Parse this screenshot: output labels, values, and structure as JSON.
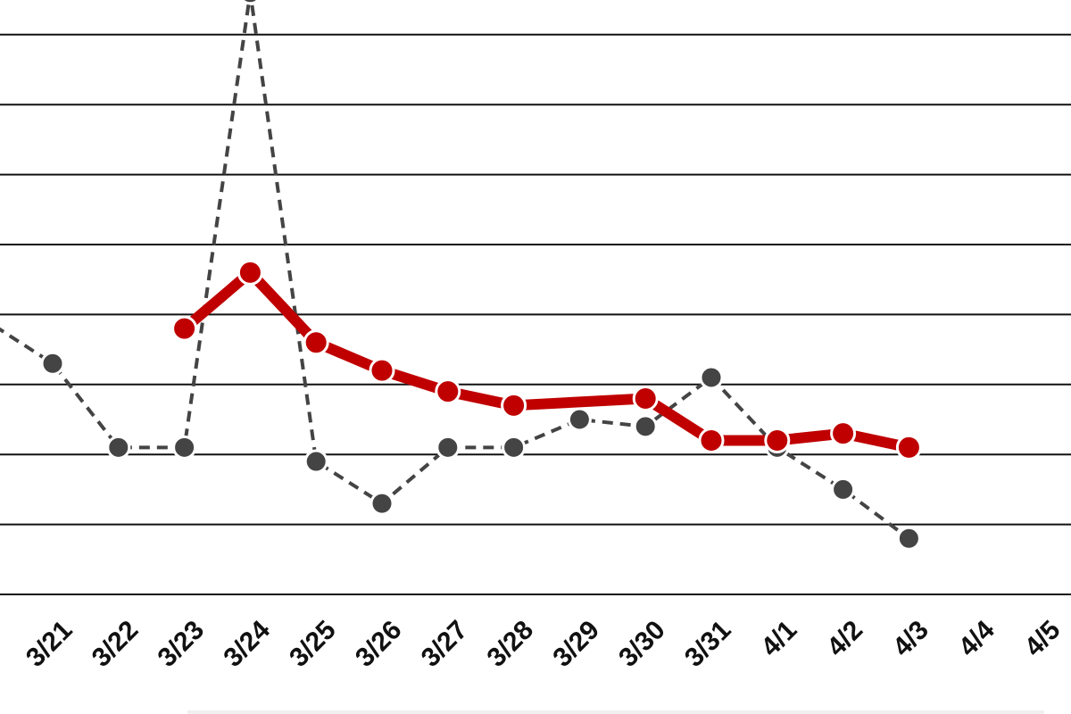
{
  "chart_data": {
    "type": "line",
    "categories": [
      "3/21",
      "3/22",
      "3/23",
      "3/24",
      "3/25",
      "3/26",
      "3/27",
      "3/28",
      "3/29",
      "3/30",
      "3/31",
      "4/1",
      "4/2",
      "4/3",
      "4/4",
      "4/5"
    ],
    "ylim": [
      0,
      8.5
    ],
    "grid": true,
    "series": [
      {
        "style": "dashed",
        "color": "#444444",
        "values": [
          3.3,
          2.1,
          2.1,
          8.6,
          1.9,
          1.3,
          2.1,
          2.1,
          2.5,
          2.4,
          3.1,
          2.1,
          1.5,
          0.8,
          null,
          null
        ]
      },
      {
        "style": "solid",
        "color": "#c00000",
        "values": [
          null,
          null,
          3.8,
          4.6,
          3.6,
          3.2,
          2.9,
          2.7,
          null,
          2.8,
          2.2,
          2.2,
          2.3,
          2.1,
          null,
          null
        ]
      }
    ]
  },
  "colors": {
    "background": "#ffffff",
    "grid": "#111111",
    "axis_text": "#111111"
  }
}
